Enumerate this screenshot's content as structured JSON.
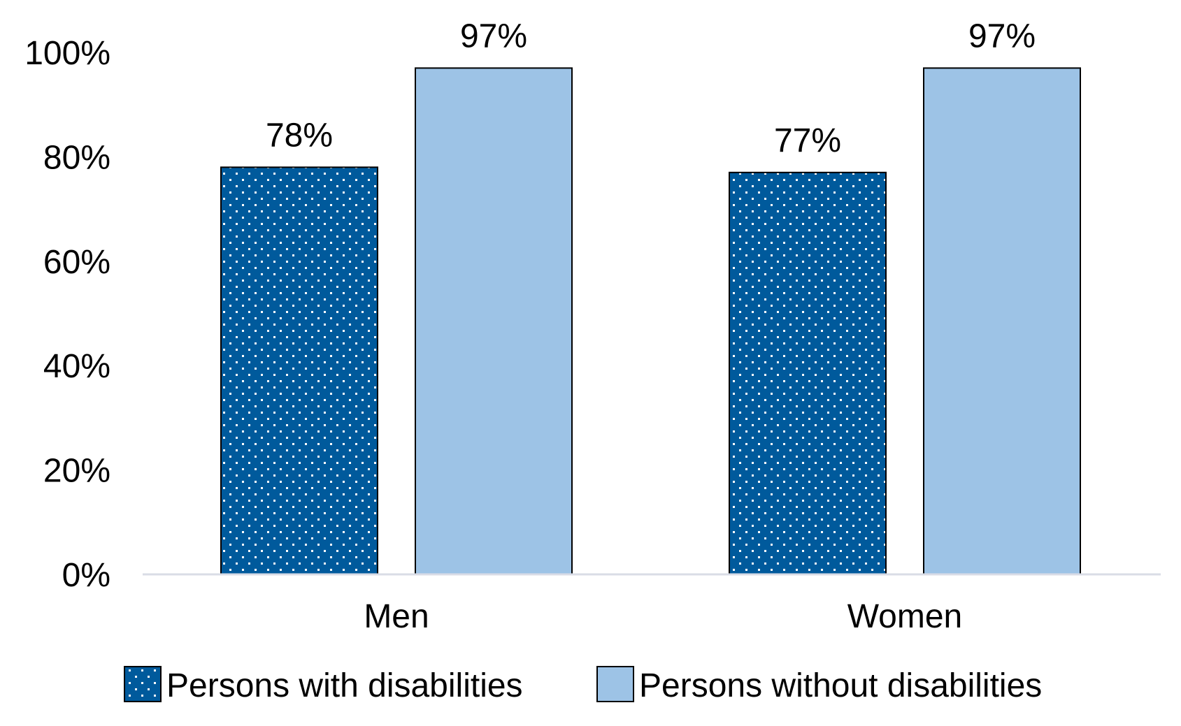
{
  "chart_data": {
    "type": "bar",
    "title": "",
    "xlabel": "",
    "ylabel": "",
    "categories": [
      "Men",
      "Women"
    ],
    "series": [
      {
        "name": "Persons with disabilities",
        "values": [
          78,
          77
        ],
        "labels": [
          "78%",
          "77%"
        ],
        "color": "#005a9c",
        "pattern": "dotted"
      },
      {
        "name": "Persons without disabilities",
        "values": [
          97,
          97
        ],
        "labels": [
          "97%",
          "97%"
        ],
        "color": "#9dc3e6",
        "pattern": "solid"
      }
    ],
    "ylim": [
      0,
      100
    ],
    "y_ticks": [
      0,
      20,
      40,
      60,
      80,
      100
    ],
    "y_tick_labels": [
      "0%",
      "20%",
      "40%",
      "60%",
      "80%",
      "100%"
    ],
    "grid": false,
    "legend_position": "bottom",
    "axis_color": "#d9dce6"
  }
}
